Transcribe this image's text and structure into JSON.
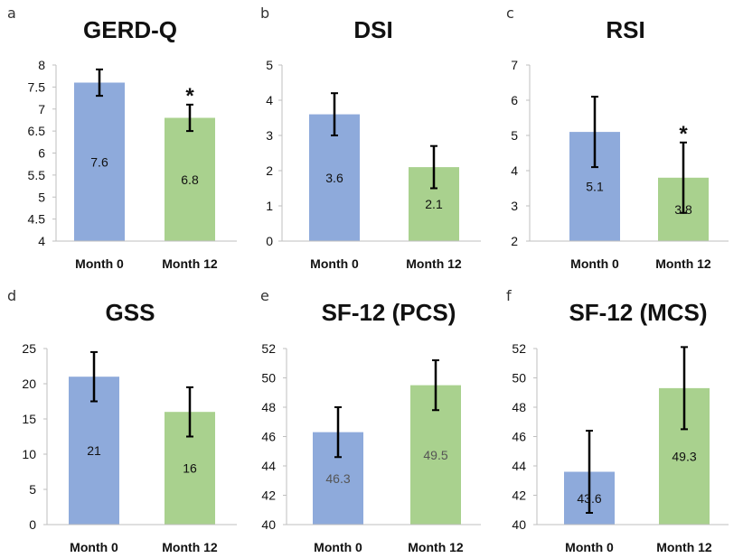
{
  "colors": {
    "month0": "#8eaadb",
    "month12": "#a9d18e",
    "axis": "#bfbfbf",
    "error": "#000000"
  },
  "chart_data": [
    {
      "letter": "a",
      "title": "GERD-Q",
      "type": "bar",
      "categories": [
        "Month 0",
        "Month 12"
      ],
      "values": [
        7.6,
        6.8
      ],
      "value_labels": [
        "7.6",
        "6.8"
      ],
      "errors": [
        0.3,
        0.3
      ],
      "ylim": [
        4,
        8
      ],
      "yticks": [
        4,
        4.5,
        5,
        5.5,
        6,
        6.5,
        7,
        7.5,
        8
      ],
      "ytick_labels": [
        "4",
        "4.5",
        "5",
        "5.5",
        "6",
        "6.5",
        "7",
        "7.5",
        "8"
      ],
      "significance": [
        "",
        "*"
      ],
      "label_muted": false
    },
    {
      "letter": "b",
      "title": "DSI",
      "type": "bar",
      "categories": [
        "Month 0",
        "Month 12"
      ],
      "values": [
        3.6,
        2.1
      ],
      "value_labels": [
        "3.6",
        "2.1"
      ],
      "errors": [
        0.6,
        0.6
      ],
      "ylim": [
        0,
        5
      ],
      "yticks": [
        0,
        1,
        2,
        3,
        4,
        5
      ],
      "ytick_labels": [
        "0",
        "1",
        "2",
        "3",
        "4",
        "5"
      ],
      "significance": [
        "",
        ""
      ],
      "label_muted": false
    },
    {
      "letter": "c",
      "title": "RSI",
      "type": "bar",
      "categories": [
        "Month 0",
        "Month 12"
      ],
      "values": [
        5.1,
        3.8
      ],
      "value_labels": [
        "5.1",
        "3.8"
      ],
      "errors": [
        1.0,
        1.0
      ],
      "ylim": [
        2,
        7
      ],
      "yticks": [
        2,
        3,
        4,
        5,
        6,
        7
      ],
      "ytick_labels": [
        "2",
        "3",
        "4",
        "5",
        "6",
        "7"
      ],
      "significance": [
        "",
        "*"
      ],
      "label_muted": false
    },
    {
      "letter": "d",
      "title": "GSS",
      "type": "bar",
      "categories": [
        "Month 0",
        "Month 12"
      ],
      "values": [
        21,
        16
      ],
      "value_labels": [
        "21",
        "16"
      ],
      "errors": [
        3.5,
        3.5
      ],
      "ylim": [
        0,
        25
      ],
      "yticks": [
        0,
        5,
        10,
        15,
        20,
        25
      ],
      "ytick_labels": [
        "0",
        "5",
        "10",
        "15",
        "20",
        "25"
      ],
      "significance": [
        "",
        ""
      ],
      "label_muted": false
    },
    {
      "letter": "e",
      "title": "SF-12 (PCS)",
      "type": "bar",
      "categories": [
        "Month 0",
        "Month 12"
      ],
      "values": [
        46.3,
        49.5
      ],
      "value_labels": [
        "46.3",
        "49.5"
      ],
      "errors": [
        1.7,
        1.7
      ],
      "ylim": [
        40,
        52
      ],
      "yticks": [
        40,
        42,
        44,
        46,
        48,
        50,
        52
      ],
      "ytick_labels": [
        "40",
        "42",
        "44",
        "46",
        "48",
        "50",
        "52"
      ],
      "significance": [
        "",
        ""
      ],
      "label_muted": true
    },
    {
      "letter": "f",
      "title": "SF-12 (MCS)",
      "type": "bar",
      "categories": [
        "Month 0",
        "Month 12"
      ],
      "values": [
        43.6,
        49.3
      ],
      "value_labels": [
        "43.6",
        "49.3"
      ],
      "errors": [
        2.8,
        2.8
      ],
      "ylim": [
        40,
        52
      ],
      "yticks": [
        40,
        42,
        44,
        46,
        48,
        50,
        52
      ],
      "ytick_labels": [
        "40",
        "42",
        "44",
        "46",
        "48",
        "50",
        "52"
      ],
      "significance": [
        "",
        ""
      ],
      "label_muted": false
    }
  ]
}
